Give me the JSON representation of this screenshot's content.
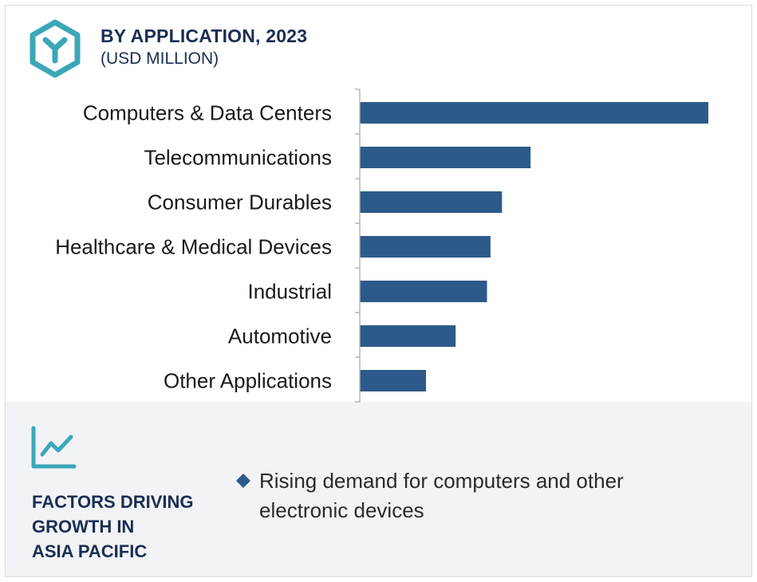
{
  "header": {
    "title": "BY APPLICATION, 2023",
    "subtitle": "(USD MILLION)"
  },
  "colors": {
    "bar": "#2d5a8a",
    "accent": "#3ba7b8",
    "heading": "#1b2d52",
    "panel": "#f1f3f6"
  },
  "icons": {
    "header": "hexagon-y-icon",
    "factors": "trend-chart-icon",
    "bullet": "diamond-bullet-icon"
  },
  "chart_data": {
    "type": "bar",
    "orientation": "horizontal",
    "title": "BY APPLICATION, 2023",
    "subtitle": "(USD MILLION)",
    "categories": [
      "Computers & Data Centers",
      "Telecommunications",
      "Consumer Durables",
      "Healthcare & Medical Devices",
      "Industrial",
      "Automotive",
      "Other Applications"
    ],
    "values": [
      100,
      49,
      40.8,
      37.5,
      36.5,
      27.5,
      19
    ],
    "grid": false,
    "legend": "none"
  },
  "factors": {
    "title_lines": [
      "FACTORS DRIVING",
      "GROWTH IN",
      "ASIA PACIFIC"
    ],
    "items": [
      "Rising demand for computers and other electronic devices"
    ]
  }
}
